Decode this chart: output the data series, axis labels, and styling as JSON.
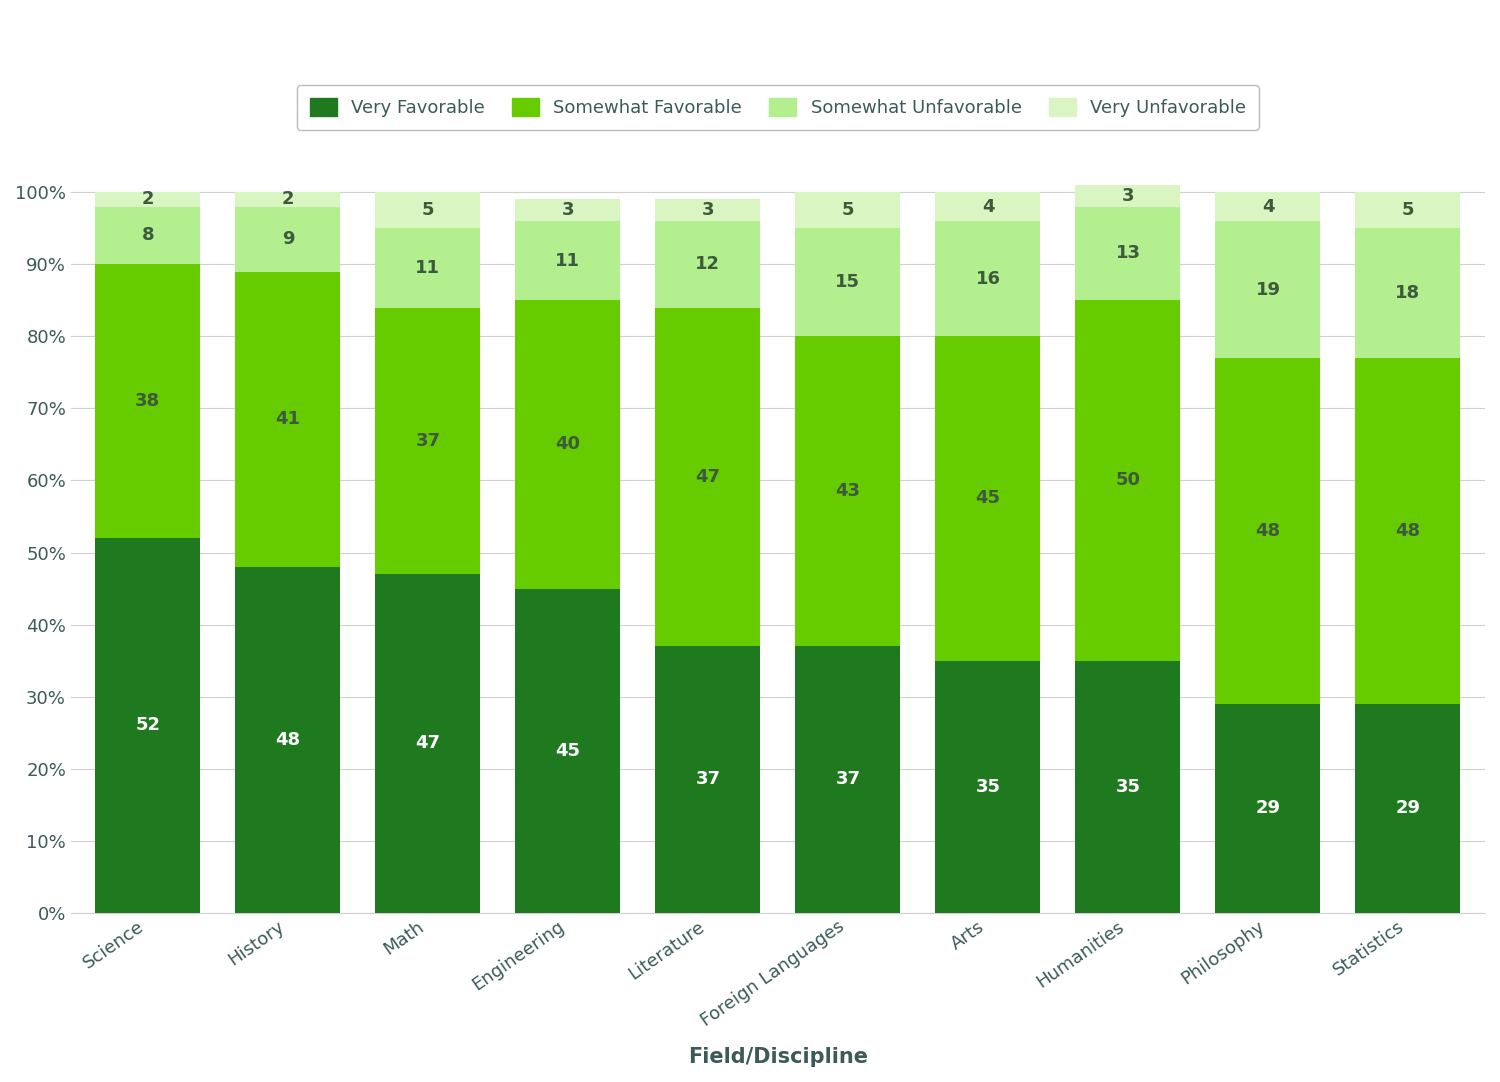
{
  "categories": [
    "Science",
    "History",
    "Math",
    "Engineering",
    "Literature",
    "Foreign Languages",
    "Arts",
    "Humanities",
    "Philosophy",
    "Statistics"
  ],
  "very_favorable": [
    52,
    48,
    47,
    45,
    37,
    37,
    35,
    35,
    29,
    29
  ],
  "somewhat_favorable": [
    38,
    41,
    37,
    40,
    47,
    43,
    45,
    50,
    48,
    48
  ],
  "somewhat_unfavorable": [
    8,
    9,
    11,
    11,
    12,
    15,
    16,
    13,
    19,
    18
  ],
  "very_unfavorable": [
    2,
    2,
    5,
    3,
    3,
    5,
    4,
    3,
    4,
    5
  ],
  "colors": {
    "very_favorable": "#1f7a1f",
    "somewhat_favorable": "#66cc00",
    "somewhat_unfavorable": "#b3ee8f",
    "very_unfavorable": "#d9f5c2"
  },
  "legend_labels": [
    "Very Favorable",
    "Somewhat Favorable",
    "Somewhat Unfavorable",
    "Very Unfavorable"
  ],
  "xlabel": "Field/Discipline",
  "ylim": [
    0,
    100
  ],
  "background_color": "#ffffff",
  "text_color_on_dark": "#ffffff",
  "text_color_on_light": "#3d5a3d",
  "tick_fontsize": 13,
  "label_fontsize": 13,
  "legend_fontsize": 13,
  "xlabel_fontsize": 15,
  "bar_width": 0.75,
  "grid_color": "#d0d0d0",
  "axis_text_color": "#3d5a5a",
  "legend_edge_color": "#bbbbbb"
}
